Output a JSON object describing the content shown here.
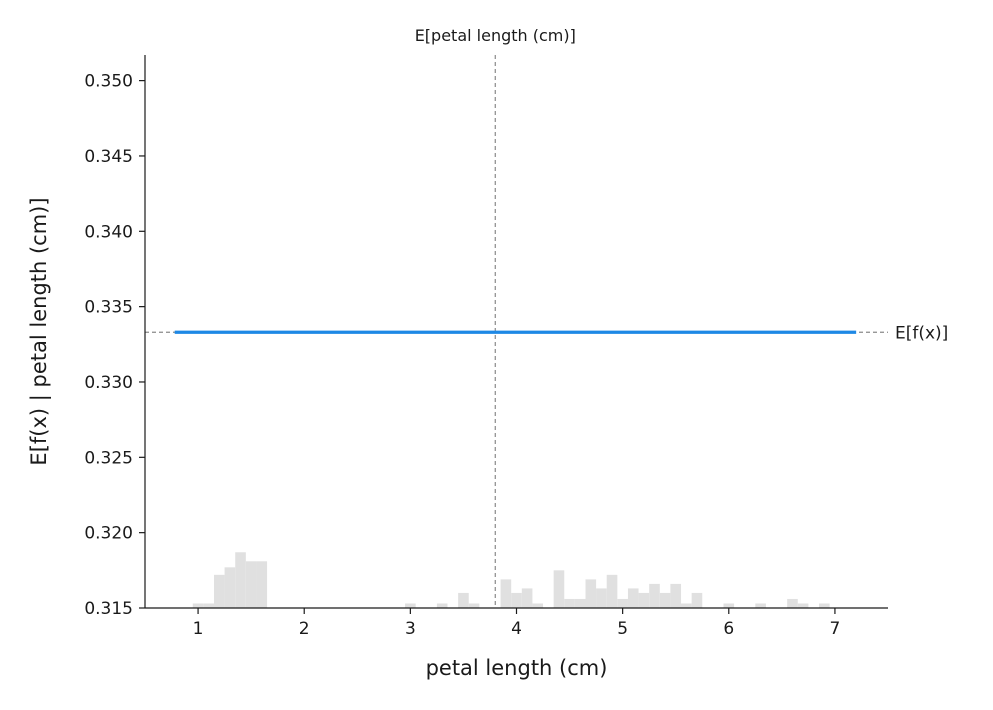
{
  "chart_data": {
    "type": "line",
    "xlabel": "petal length (cm)",
    "ylabel": "E[f(x) | petal length (cm)]",
    "xlim": [
      0.5,
      7.5
    ],
    "ylim": [
      0.315,
      0.3517
    ],
    "x_ticks": [
      1,
      2,
      3,
      4,
      5,
      6,
      7
    ],
    "x_tick_labels": [
      "1",
      "2",
      "3",
      "4",
      "5",
      "6",
      "7"
    ],
    "y_ticks": [
      0.315,
      0.32,
      0.325,
      0.33,
      0.335,
      0.34,
      0.345,
      0.35
    ],
    "y_tick_labels": [
      "0.315",
      "0.320",
      "0.325",
      "0.330",
      "0.335",
      "0.340",
      "0.345",
      "0.350"
    ],
    "series": [
      {
        "x": [
          0.78,
          7.2
        ],
        "y": [
          0.3333,
          0.3333
        ],
        "color": "#1e88e5"
      }
    ],
    "expected_value": {
      "label": "E[f(x)]",
      "value": 0.3333
    },
    "feature_mean": {
      "label": "E[petal length (cm)]",
      "value": 3.8
    },
    "histogram": {
      "bin_width": 0.1,
      "color": "#e0e0e0",
      "bins": [
        {
          "x": 1.0,
          "height": 0.0003
        },
        {
          "x": 1.1,
          "height": 0.0003
        },
        {
          "x": 1.2,
          "height": 0.0022
        },
        {
          "x": 1.3,
          "height": 0.0027
        },
        {
          "x": 1.4,
          "height": 0.0037
        },
        {
          "x": 1.5,
          "height": 0.0031
        },
        {
          "x": 1.6,
          "height": 0.0031
        },
        {
          "x": 3.0,
          "height": 0.0003
        },
        {
          "x": 3.3,
          "height": 0.0003
        },
        {
          "x": 3.5,
          "height": 0.001
        },
        {
          "x": 3.6,
          "height": 0.0003
        },
        {
          "x": 3.9,
          "height": 0.0019
        },
        {
          "x": 4.0,
          "height": 0.001
        },
        {
          "x": 4.1,
          "height": 0.0013
        },
        {
          "x": 4.2,
          "height": 0.0003
        },
        {
          "x": 4.4,
          "height": 0.0025
        },
        {
          "x": 4.5,
          "height": 0.0006
        },
        {
          "x": 4.6,
          "height": 0.0006
        },
        {
          "x": 4.7,
          "height": 0.0019
        },
        {
          "x": 4.8,
          "height": 0.0013
        },
        {
          "x": 4.9,
          "height": 0.0022
        },
        {
          "x": 5.0,
          "height": 0.0006
        },
        {
          "x": 5.1,
          "height": 0.0013
        },
        {
          "x": 5.2,
          "height": 0.001
        },
        {
          "x": 5.3,
          "height": 0.0016
        },
        {
          "x": 5.4,
          "height": 0.001
        },
        {
          "x": 5.5,
          "height": 0.0016
        },
        {
          "x": 5.6,
          "height": 0.0003
        },
        {
          "x": 5.7,
          "height": 0.001
        },
        {
          "x": 6.0,
          "height": 0.0003
        },
        {
          "x": 6.3,
          "height": 0.0003
        },
        {
          "x": 6.6,
          "height": 0.0006
        },
        {
          "x": 6.7,
          "height": 0.0003
        },
        {
          "x": 6.9,
          "height": 0.0003
        }
      ]
    },
    "grid": false
  }
}
